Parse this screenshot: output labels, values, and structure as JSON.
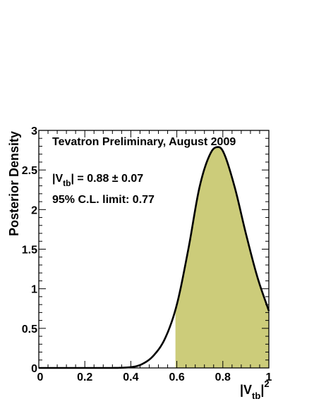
{
  "chart_data": {
    "type": "area",
    "annotations": [
      "Tevatron Preliminary, August 2009",
      "95% C.L. limit: 0.77"
    ],
    "vtb_result": {
      "prefix": "|V",
      "sub": "tb",
      "suffix": "| = 0.88 ± 0.07"
    },
    "xlabel": {
      "prefix": "|V",
      "sub": "tb",
      "suffix": "|",
      "sup": "2"
    },
    "ylabel": "Posterior Density",
    "xlim": [
      0,
      1
    ],
    "ylim": [
      0,
      3
    ],
    "x_ticks": [
      "0",
      "0.2",
      "0.4",
      "0.6",
      "0.8",
      "1"
    ],
    "y_ticks": [
      "0",
      "0.5",
      "1",
      "1.5",
      "2",
      "2.5",
      "3"
    ],
    "shaded_region": {
      "x_from": 0.594,
      "x_to": 1.0,
      "color": "#cccc7a"
    },
    "curve_color": "#000000",
    "series": [
      {
        "x": [
          0.0,
          0.3,
          0.4,
          0.45,
          0.5,
          0.55,
          0.6,
          0.65,
          0.7,
          0.75,
          0.78,
          0.8,
          0.85,
          0.9,
          0.95,
          1.0
        ],
        "y": [
          0.0,
          0.0,
          0.01,
          0.05,
          0.16,
          0.38,
          0.8,
          1.5,
          2.3,
          2.73,
          2.79,
          2.74,
          2.3,
          1.7,
          1.15,
          0.72
        ]
      }
    ]
  }
}
